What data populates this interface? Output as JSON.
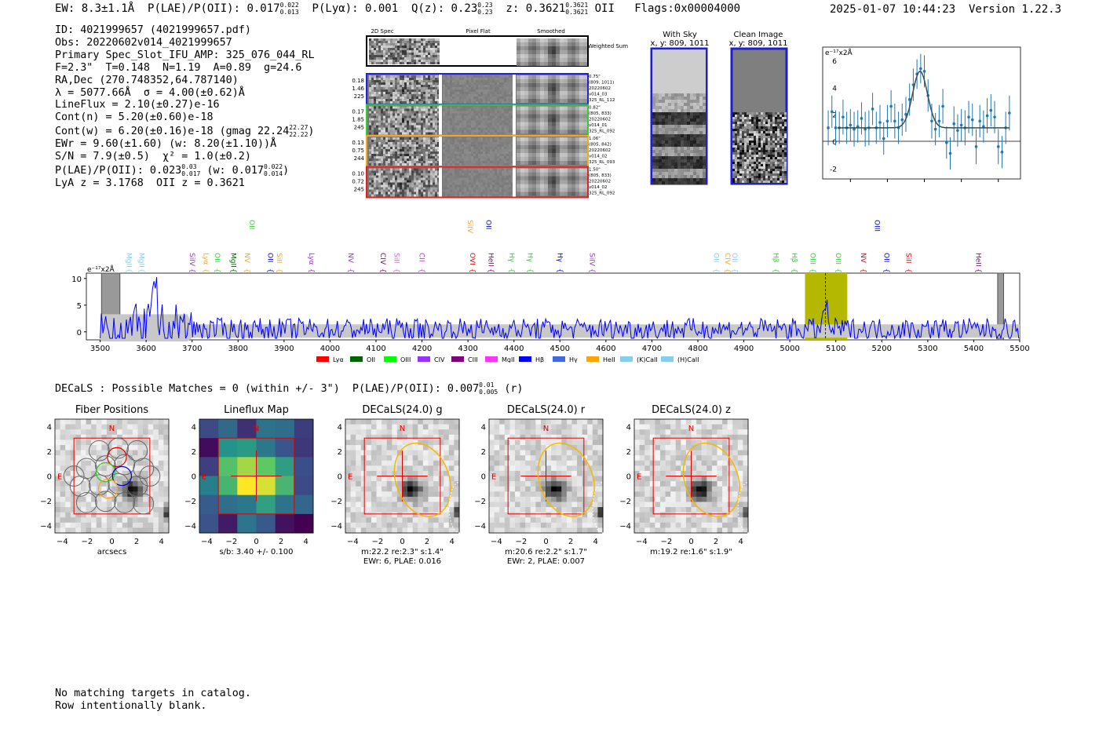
{
  "header": {
    "ew": "EW: 8.3±1.1Å",
    "plae": "P(LAE)/P(OII): 0.017",
    "plae_sup": "0.022",
    "plae_sub": "0.013",
    "plya": "P(Lyα): 0.001",
    "q": "Q(z): 0.23",
    "q_sup": "0.23",
    "q_sub": "0.23",
    "z": "z: 0.3621",
    "z_sup": "0.3621",
    "z_sub": "0.3621",
    "z_line": "OII",
    "flags": "Flags:0x00004000"
  },
  "stamp": "2025-01-07 10:44:23  Version 1.22.3",
  "info": [
    "ID: 4021999657 (4021999657.pdf)",
    "Obs: 20220602v014_4021999657",
    "Primary Spec_Slot_IFU_AMP: 325_076_044_RL",
    "F=2.3\"  T=0.148  N=1.19  A=0.89  g=24.6",
    "RA,Dec (270.748352,64.787140)",
    "λ = 5077.66Å  σ = 4.00(±0.62)Å",
    "LineFlux = 2.10(±0.27)e-16",
    "Cont(n) = 5.20(±0.60)e-18",
    "Cont(w) = 6.20(±0.16)e-18 (gmag 22.24",
    "EWr = 9.60(±1.60) (w: 8.20(±1.10))Å",
    "S/N = 7.9(±0.5)  χ² = 1.0(±0.2)",
    "P(LAE)/P(OII): 0.023",
    "LyA z = 3.1768  OII z = 0.3621"
  ],
  "info_extra": {
    "gmag_sup": "22.27",
    "gmag_sub": "22.22",
    "plae2_sup": "0.03",
    "plae2_sub": "0.017",
    "plae2_w": "(w: 0.017",
    "plae2_w_sup": "0.022",
    "plae2_w_sub": "0.014",
    "close": ")"
  },
  "cutouts": {
    "col_titles": [
      "2D Spec",
      "Pixel Flat",
      "Smoothed"
    ],
    "weighted": "Weighted Sum",
    "rows": [
      {
        "color": "#2222dd",
        "stats": [
          "0.18",
          "1.46",
          "225"
        ],
        "meta": [
          "0.75\"",
          "(809, 1011)",
          "20220602",
          "v014_03",
          "325_RL_112"
        ]
      },
      {
        "color": "#33cc33",
        "stats": [
          "0.17",
          "1.85",
          "245"
        ],
        "meta": [
          "0.82\"",
          "(805, 833)",
          "20220602",
          "v014_01",
          "325_RL_092"
        ]
      },
      {
        "color": "#f5a623",
        "stats": [
          "0.13",
          "0.75",
          "244"
        ],
        "meta": [
          "1.06\"",
          "(805, 842)",
          "20220602",
          "v014_02",
          "325_RL_093"
        ]
      },
      {
        "color": "#e02020",
        "stats": [
          "0.10",
          "0.72",
          "245"
        ],
        "meta": [
          "1.50\"",
          "(805, 833)",
          "20220602",
          "v014_02",
          "325_RL_092"
        ]
      }
    ]
  },
  "sky": {
    "title1": "With Sky",
    "sub1": "x, y: 809, 1011",
    "title2": "Clean Image",
    "sub2": "x, y: 809, 1011"
  },
  "zoom_chart": {
    "type": "scatter",
    "ylabel": "e⁻¹⁷x2Å",
    "xlim": [
      5025,
      5132
    ],
    "ylim": [
      -2.8,
      7
    ],
    "xticks": [
      5040,
      5060,
      5080,
      5100,
      5120
    ],
    "yticks": [
      -2,
      0,
      2,
      4,
      6
    ],
    "points": {
      "x": [
        5028,
        5030,
        5032,
        5034,
        5036,
        5038,
        5040,
        5042,
        5044,
        5046,
        5048,
        5050,
        5052,
        5054,
        5056,
        5058,
        5060,
        5062,
        5064,
        5066,
        5068,
        5070,
        5072,
        5074,
        5076,
        5078,
        5080,
        5082,
        5084,
        5086,
        5088,
        5090,
        5092,
        5094,
        5096,
        5098,
        5100,
        5102,
        5104,
        5106,
        5108,
        5110,
        5112,
        5114,
        5116,
        5118,
        5120,
        5122,
        5124,
        5126
      ],
      "y": [
        1.0,
        2.2,
        1.0,
        1.0,
        1.8,
        1.0,
        1.2,
        0.9,
        1.1,
        1.7,
        0.9,
        1.0,
        2.4,
        1.0,
        1.4,
        0.2,
        1.5,
        2.6,
        1.5,
        1.0,
        1.6,
        2.0,
        3.1,
        4.2,
        5.0,
        5.4,
        5.2,
        3.4,
        1.5,
        0.9,
        1.5,
        2.6,
        -0.1,
        -0.9,
        1.3,
        0.8,
        1.2,
        1.0,
        1.8,
        1.6,
        -0.4,
        1.5,
        1.1,
        1.9,
        2.3,
        1.8,
        -0.4,
        -0.8,
        1.0,
        2.1
      ],
      "err": [
        1.3,
        1.2,
        1.3,
        1.2,
        1.3,
        1.2,
        1.2,
        1.3,
        1.2,
        1.2,
        1.3,
        1.3,
        1.2,
        1.2,
        1.3,
        1.2,
        1.2,
        1.2,
        1.3,
        1.2,
        1.2,
        1.3,
        1.2,
        1.2,
        1.1,
        1.1,
        1.2,
        1.2,
        1.3,
        1.2,
        1.2,
        1.3,
        1.2,
        1.2,
        1.3,
        1.2,
        1.2,
        1.3,
        1.2,
        1.2,
        1.3,
        1.2,
        1.2,
        1.3,
        1.2,
        1.2,
        1.3,
        1.2,
        1.2,
        1.3
      ]
    },
    "fit": {
      "center": 5077.66,
      "sigma": 4.0,
      "amp": 4.2,
      "cont": 1.0
    }
  },
  "spectrum_chart": {
    "type": "line",
    "ylabel": "e⁻¹⁷x2Å",
    "xlim": [
      3470,
      5500
    ],
    "ylim": [
      -1.5,
      11
    ],
    "yticks": [
      0,
      5,
      10
    ],
    "xticks": [
      3500,
      3600,
      3700,
      3800,
      3900,
      4000,
      4100,
      4200,
      4300,
      4400,
      4500,
      4600,
      4700,
      4800,
      4900,
      5000,
      5100,
      5200,
      5300,
      5400,
      5500
    ],
    "highlight": [
      5033,
      5125
    ],
    "line_center": 5077.66,
    "masked": [
      [
        3503,
        3543
      ],
      [
        5452,
        5465
      ]
    ],
    "series": [
      {
        "name": "spectrum",
        "color": "#0000ff"
      }
    ],
    "line_labels": [
      {
        "x": 3553,
        "label": "MgII",
        "color": "#87ceeb",
        "row": 1
      },
      {
        "x": 3580,
        "label": "MgII",
        "color": "#87ceeb",
        "row": 1
      },
      {
        "x": 3690,
        "label": "SiIV",
        "color": "#9933cc",
        "row": 1
      },
      {
        "x": 3720,
        "label": "Lyα",
        "color": "#f5a623",
        "row": 1
      },
      {
        "x": 3745,
        "label": "OII",
        "color": "#33cc33",
        "row": 1
      },
      {
        "x": 3780,
        "label": "MgII",
        "color": "#006400",
        "row": 1
      },
      {
        "x": 3810,
        "label": "NV",
        "color": "#f5a623",
        "row": 1
      },
      {
        "x": 3860,
        "label": "OII",
        "color": "#0000cc",
        "row": 1
      },
      {
        "x": 3880,
        "label": "SiII",
        "color": "#f5a623",
        "row": 1
      },
      {
        "x": 3950,
        "label": "Lyα",
        "color": "#9933cc",
        "row": 1
      },
      {
        "x": 4035,
        "label": "NV",
        "color": "#9933cc",
        "row": 1
      },
      {
        "x": 4105,
        "label": "CIV",
        "color": "#800080",
        "row": 1
      },
      {
        "x": 4135,
        "label": "SiII",
        "color": "#cc66cc",
        "row": 1
      },
      {
        "x": 4190,
        "label": "CII",
        "color": "#cc33cc",
        "row": 1
      },
      {
        "x": 4300,
        "label": "OVI",
        "color": "#ee0000",
        "row": 1
      },
      {
        "x": 4340,
        "label": "HeII",
        "color": "#800080",
        "row": 1
      },
      {
        "x": 4385,
        "label": "Hγ",
        "color": "#33cc33",
        "row": 1
      },
      {
        "x": 4425,
        "label": "Hγ",
        "color": "#33cc33",
        "row": 1
      },
      {
        "x": 4490,
        "label": "Hγ",
        "color": "#0000cc",
        "row": 1
      },
      {
        "x": 4560,
        "label": "SiIV",
        "color": "#9933cc",
        "row": 1
      },
      {
        "x": 4830,
        "label": "OII",
        "color": "#87ceeb",
        "row": 1
      },
      {
        "x": 4855,
        "label": "CIV",
        "color": "#f5a623",
        "row": 1
      },
      {
        "x": 4870,
        "label": "OII",
        "color": "#87ceeb",
        "row": 1
      },
      {
        "x": 4960,
        "label": "Hβ",
        "color": "#33cc33",
        "row": 1
      },
      {
        "x": 5000,
        "label": "Hβ",
        "color": "#33cc33",
        "row": 1
      },
      {
        "x": 5040,
        "label": "OIII",
        "color": "#33cc33",
        "row": 1
      },
      {
        "x": 5095,
        "label": "OIII",
        "color": "#33cc33",
        "row": 1
      },
      {
        "x": 5150,
        "label": "NV",
        "color": "#ee0000",
        "row": 1
      },
      {
        "x": 5200,
        "label": "OII",
        "color": "#0000cc",
        "row": 1
      },
      {
        "x": 5248,
        "label": "SiII",
        "color": "#ee0000",
        "row": 1
      },
      {
        "x": 5400,
        "label": "HeII",
        "color": "#800080",
        "row": 1
      },
      {
        "x": 3820,
        "label": "OII",
        "color": "#33cc33",
        "row": 0
      },
      {
        "x": 4295,
        "label": "SiIV",
        "color": "#f5a623",
        "row": 0
      },
      {
        "x": 4335,
        "label": "OII",
        "color": "#0000cc",
        "row": 0
      },
      {
        "x": 5180,
        "label": "OIII",
        "color": "#0000cc",
        "row": 0
      }
    ],
    "legend": [
      {
        "label": "Lyα",
        "color": "#ff0000"
      },
      {
        "label": "OII",
        "color": "#006400"
      },
      {
        "label": "OIII",
        "color": "#00ff00"
      },
      {
        "label": "CIV",
        "color": "#9933ff"
      },
      {
        "label": "CIII",
        "color": "#800080"
      },
      {
        "label": "MgII",
        "color": "#ff33ff"
      },
      {
        "label": "Hβ",
        "color": "#0000ff"
      },
      {
        "label": "Hγ",
        "color": "#4169e1"
      },
      {
        "label": "HeII",
        "color": "#ffa500"
      },
      {
        "label": "(K)CaII",
        "color": "#87ceeb"
      },
      {
        "label": "(H)CaII",
        "color": "#87ceeb"
      }
    ]
  },
  "decals_line": "DECaLS : Possible Matches = 0 (within +/- 3\")  P(LAE)/P(OII): 0.007",
  "decals_sup": "0.01",
  "decals_sub": "0.005",
  "decals_band": "(r)",
  "panels": [
    {
      "title": "Fiber Positions",
      "sub": [
        "arcsecs"
      ],
      "kind": "fiber"
    },
    {
      "title": "Lineflux Map",
      "sub": [
        "s/b: 3.40 +/- 0.100"
      ],
      "kind": "flux"
    },
    {
      "title": "DECaLS(24.0) g",
      "sub": [
        "m:22.2  re:2.3\"  s:1.4\"",
        "EWr: 6, PLAE: 0.016"
      ],
      "kind": "img"
    },
    {
      "title": "DECaLS(24.0) r",
      "sub": [
        "m:20.6  re:2.2\"  s:1.7\"",
        "EWr: 2, PLAE: 0.007"
      ],
      "kind": "img"
    },
    {
      "title": "DECaLS(24.0) z",
      "sub": [
        "m:19.2  re:1.6\"  s:1.9\""
      ],
      "kind": "img"
    }
  ],
  "panel_axis": {
    "ticks": [
      "−4",
      "−2",
      "0",
      "2",
      "4"
    ],
    "N": "N",
    "E": "E"
  },
  "footer": [
    "No matching targets in catalog.",
    "Row intentionally blank."
  ]
}
